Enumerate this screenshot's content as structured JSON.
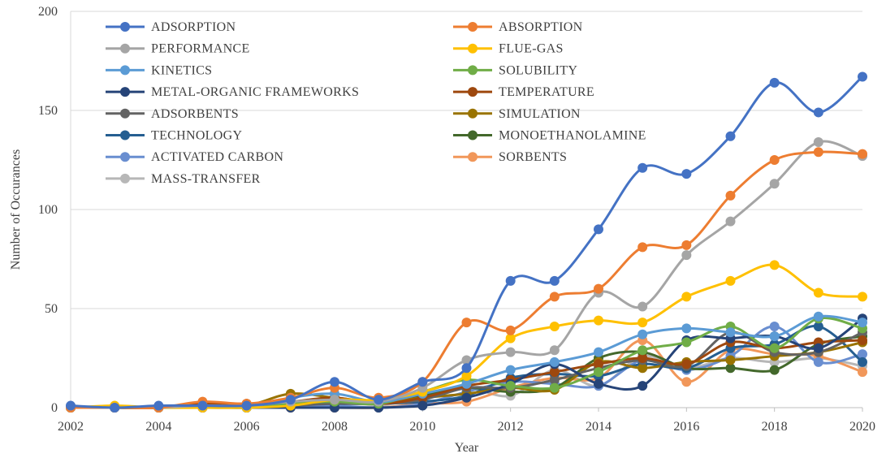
{
  "chart_data": {
    "type": "line",
    "xlabel": "Year",
    "ylabel": "Number of Occurances",
    "xlim": [
      2002,
      2020
    ],
    "ylim": [
      0,
      200
    ],
    "x_ticks": [
      "2002",
      "2004",
      "2006",
      "2008",
      "2010",
      "2012",
      "2014",
      "2016",
      "2018",
      "2020"
    ],
    "y_ticks": [
      "0",
      "50",
      "100",
      "150",
      "200"
    ],
    "grid": "horizontal",
    "legend_position": "top-left",
    "x": [
      2002,
      2003,
      2004,
      2005,
      2006,
      2007,
      2008,
      2009,
      2010,
      2011,
      2012,
      2013,
      2014,
      2015,
      2016,
      2017,
      2018,
      2019,
      2020
    ],
    "series": [
      {
        "name": "ADSORPTION",
        "color": "#4472C4",
        "values": [
          1,
          0,
          1,
          1,
          1,
          4,
          13,
          4,
          13,
          20,
          64,
          64,
          90,
          121,
          118,
          137,
          164,
          149,
          167
        ]
      },
      {
        "name": "ABSORPTION",
        "color": "#ED7D31",
        "values": [
          0,
          0,
          0,
          3,
          2,
          5,
          10,
          5,
          13,
          43,
          39,
          56,
          60,
          81,
          82,
          107,
          125,
          129,
          128
        ]
      },
      {
        "name": "PERFORMANCE",
        "color": "#A5A5A5",
        "values": [
          0,
          0,
          0,
          1,
          1,
          3,
          4,
          3,
          10,
          24,
          28,
          29,
          58,
          51,
          77,
          94,
          113,
          134,
          127
        ]
      },
      {
        "name": "FLUE-GAS",
        "color": "#FFC000",
        "values": [
          0,
          1,
          0,
          0,
          0,
          1,
          4,
          4,
          8,
          16,
          35,
          41,
          44,
          43,
          56,
          64,
          72,
          58,
          56
        ]
      },
      {
        "name": "KINETICS",
        "color": "#5B9BD5",
        "values": [
          0,
          0,
          0,
          1,
          0,
          5,
          7,
          3,
          7,
          12,
          19,
          23,
          28,
          37,
          40,
          38,
          36,
          46,
          43
        ]
      },
      {
        "name": "SOLUBILITY",
        "color": "#70AD47",
        "values": [
          0,
          0,
          0,
          1,
          0,
          2,
          3,
          2,
          8,
          14,
          11,
          10,
          18,
          29,
          33,
          41,
          30,
          45,
          40
        ]
      },
      {
        "name": "METAL-ORGANIC FRAMEWORKS",
        "color": "#264478",
        "values": [
          0,
          0,
          0,
          0,
          0,
          0,
          0,
          0,
          1,
          5,
          12,
          22,
          12,
          11,
          34,
          35,
          36,
          30,
          45
        ]
      },
      {
        "name": "TEMPERATURE",
        "color": "#9E480E",
        "values": [
          0,
          0,
          0,
          2,
          2,
          3,
          5,
          2,
          5,
          11,
          14,
          18,
          22,
          25,
          22,
          33,
          30,
          33,
          34
        ]
      },
      {
        "name": "ADSORBENTS",
        "color": "#636363",
        "values": [
          0,
          0,
          0,
          1,
          0,
          1,
          2,
          2,
          4,
          10,
          10,
          14,
          20,
          24,
          21,
          38,
          28,
          28,
          38
        ]
      },
      {
        "name": "SIMULATION",
        "color": "#997300",
        "values": [
          0,
          0,
          0,
          1,
          1,
          7,
          5,
          3,
          5,
          7,
          10,
          9,
          23,
          20,
          23,
          24,
          26,
          28,
          33
        ]
      },
      {
        "name": "TECHNOLOGY",
        "color": "#255E91",
        "values": [
          0,
          0,
          0,
          1,
          0,
          2,
          2,
          2,
          3,
          6,
          15,
          17,
          16,
          22,
          20,
          30,
          32,
          41,
          23
        ]
      },
      {
        "name": "MONOETHANOLAMINE",
        "color": "#43682B",
        "values": [
          0,
          0,
          0,
          1,
          1,
          2,
          3,
          3,
          6,
          10,
          8,
          10,
          25,
          28,
          20,
          20,
          19,
          32,
          36
        ]
      },
      {
        "name": "ACTIVATED CARBON",
        "color": "#698ED0",
        "values": [
          0,
          0,
          0,
          0,
          0,
          1,
          1,
          0,
          2,
          8,
          13,
          12,
          11,
          24,
          19,
          26,
          41,
          23,
          27
        ]
      },
      {
        "name": "SORBENTS",
        "color": "#F1975A",
        "values": [
          0,
          0,
          0,
          0,
          0,
          0,
          0,
          0,
          2,
          3,
          10,
          15,
          15,
          34,
          13,
          29,
          27,
          26,
          18
        ]
      },
      {
        "name": "MASS-TRANSFER",
        "color": "#B7B7B7",
        "values": [
          0,
          0,
          0,
          0,
          0,
          1,
          0,
          1,
          5,
          10,
          6,
          19,
          11,
          26,
          20,
          25,
          23,
          25,
          21
        ]
      }
    ]
  }
}
